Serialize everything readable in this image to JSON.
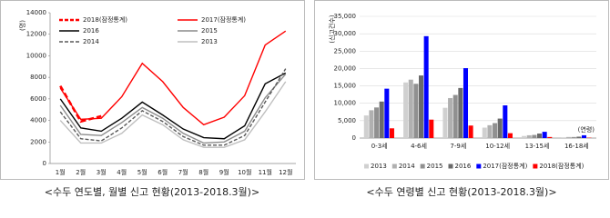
{
  "chart_data": [
    {
      "type": "line",
      "title": "<수두 연도별, 월별 신고 현황(2013-2018.3월)>",
      "y_label": "(명)",
      "categories": [
        "1월",
        "2월",
        "3월",
        "4월",
        "5월",
        "6월",
        "7월",
        "8월",
        "9월",
        "10월",
        "11월",
        "12월"
      ],
      "ylim": [
        0,
        14000
      ],
      "yticks": [
        0,
        2000,
        4000,
        6000,
        8000,
        10000,
        12000,
        14000
      ],
      "grid": true,
      "legend": "top",
      "series": [
        {
          "name": "2018(잠정통계)",
          "color": "#ff0000",
          "dash": true,
          "bold": true,
          "values": [
            7200,
            3900,
            4400,
            null,
            null,
            null,
            null,
            null,
            null,
            null,
            null,
            null
          ]
        },
        {
          "name": "2017(잠정통계)",
          "color": "#ff0000",
          "values": [
            7000,
            4100,
            4200,
            6200,
            9300,
            7600,
            5200,
            3600,
            4300,
            6300,
            11000,
            12300
          ]
        },
        {
          "name": "2016",
          "color": "#000000",
          "values": [
            6000,
            3300,
            3000,
            4200,
            5700,
            4500,
            3200,
            2400,
            2300,
            3500,
            7400,
            8400
          ]
        },
        {
          "name": "2015",
          "color": "#8c8c8c",
          "values": [
            5400,
            2700,
            2600,
            3800,
            5200,
            4200,
            2800,
            1900,
            2000,
            3000,
            6100,
            8300
          ]
        },
        {
          "name": "2014",
          "color": "#595959",
          "dash": true,
          "values": [
            4800,
            2300,
            2100,
            3300,
            4900,
            3900,
            2500,
            1700,
            1700,
            2600,
            5700,
            8800
          ]
        },
        {
          "name": "2013",
          "color": "#bfbfbf",
          "values": [
            4000,
            1900,
            1900,
            2800,
            4500,
            3600,
            2200,
            1500,
            1500,
            2200,
            4800,
            7600
          ]
        }
      ]
    },
    {
      "type": "bar",
      "title": "<수두 연령별 신고 현황(2013-2018.3월)>",
      "y_label": "(신고건수)",
      "x_label": "(연령)",
      "categories": [
        "0-3세",
        "4-6세",
        "7-9세",
        "10-12세",
        "13-15세",
        "16-18세"
      ],
      "ylim": [
        0,
        35000
      ],
      "yticks": [
        {
          "value": 0,
          "label": "0"
        },
        {
          "value": 5000,
          "label": "5,000"
        },
        {
          "value": 10000,
          "label": "10,000"
        },
        {
          "value": 15000,
          "label": "15,000"
        },
        {
          "value": 20000,
          "label": "20,000"
        },
        {
          "value": 25000,
          "label": "25,000"
        },
        {
          "value": 30000,
          "label": "30,000"
        },
        {
          "value": 35000,
          "label": "35,000"
        }
      ],
      "grid": true,
      "legend": "bottom",
      "series": [
        {
          "name": "2013",
          "color": "#d0d0d0",
          "values": [
            6500,
            16000,
            8700,
            3000,
            600,
            200
          ]
        },
        {
          "name": "2014",
          "color": "#b0b0b0",
          "values": [
            8000,
            16800,
            11500,
            3700,
            800,
            300
          ]
        },
        {
          "name": "2015",
          "color": "#909090",
          "values": [
            8800,
            15600,
            12400,
            4300,
            900,
            300
          ]
        },
        {
          "name": "2016",
          "color": "#6a6a6a",
          "values": [
            10500,
            18000,
            14400,
            5600,
            1300,
            400
          ]
        },
        {
          "name": "2017(잠정통계)",
          "color": "#0000ff",
          "values": [
            14200,
            29300,
            20100,
            9400,
            1800,
            800
          ]
        },
        {
          "name": "2018(잠정통계)",
          "color": "#ff0000",
          "values": [
            2800,
            5300,
            3600,
            1400,
            300,
            100
          ]
        }
      ]
    }
  ]
}
